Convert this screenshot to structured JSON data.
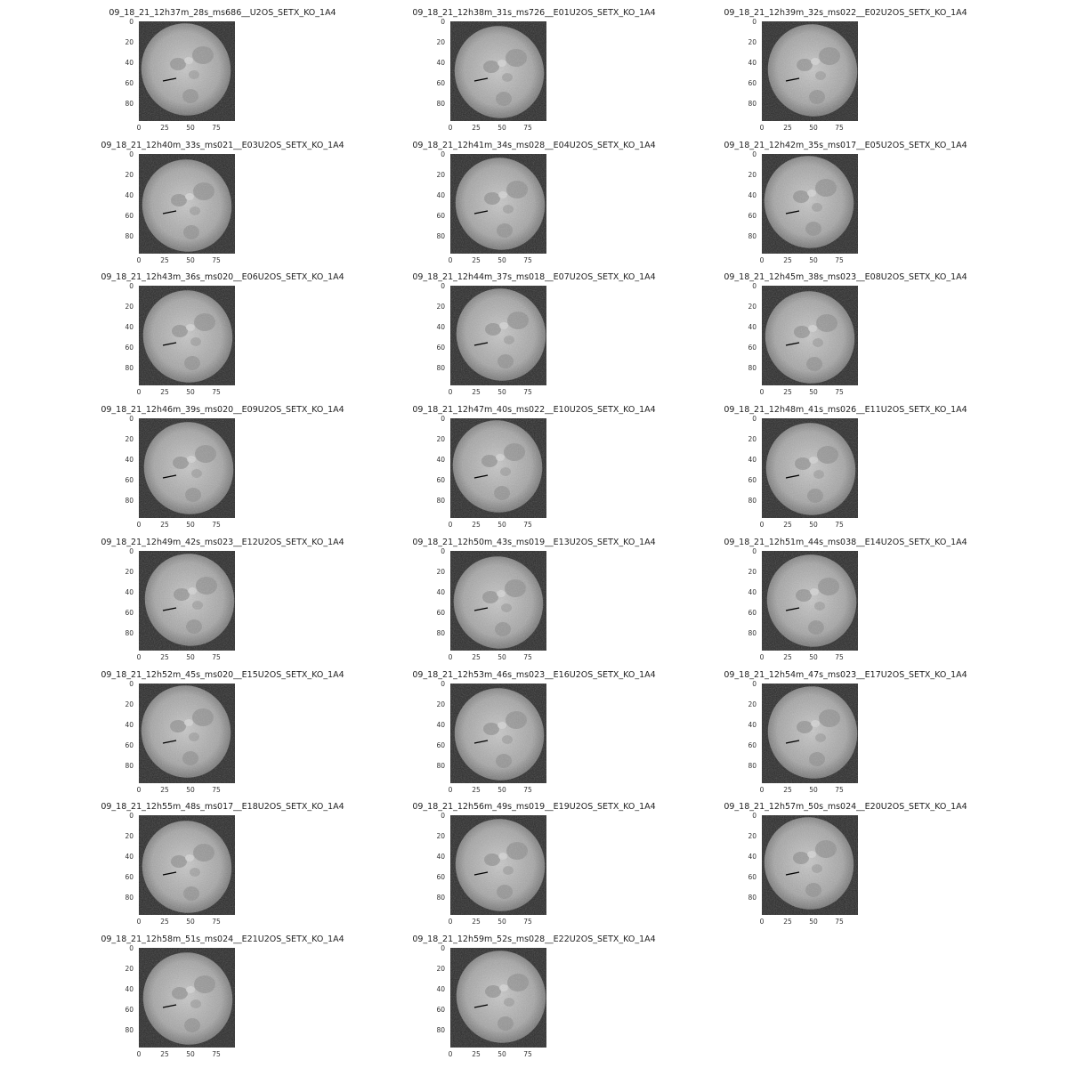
{
  "figure": {
    "panels": [
      {
        "title": "09_18_21_12h37m_28s_ms686__U2OS_SETX_KO_1A4"
      },
      {
        "title": "09_18_21_12h38m_31s_ms726__E01U2OS_SETX_KO_1A4"
      },
      {
        "title": "09_18_21_12h39m_32s_ms022__E02U2OS_SETX_KO_1A4"
      },
      {
        "title": "09_18_21_12h40m_33s_ms021__E03U2OS_SETX_KO_1A4"
      },
      {
        "title": "09_18_21_12h41m_34s_ms028__E04U2OS_SETX_KO_1A4"
      },
      {
        "title": "09_18_21_12h42m_35s_ms017__E05U2OS_SETX_KO_1A4"
      },
      {
        "title": "09_18_21_12h43m_36s_ms020__E06U2OS_SETX_KO_1A4"
      },
      {
        "title": "09_18_21_12h44m_37s_ms018__E07U2OS_SETX_KO_1A4"
      },
      {
        "title": "09_18_21_12h45m_38s_ms023__E08U2OS_SETX_KO_1A4"
      },
      {
        "title": "09_18_21_12h46m_39s_ms020__E09U2OS_SETX_KO_1A4"
      },
      {
        "title": "09_18_21_12h47m_40s_ms022__E10U2OS_SETX_KO_1A4"
      },
      {
        "title": "09_18_21_12h48m_41s_ms026__E11U2OS_SETX_KO_1A4"
      },
      {
        "title": "09_18_21_12h49m_42s_ms023__E12U2OS_SETX_KO_1A4"
      },
      {
        "title": "09_18_21_12h50m_43s_ms019__E13U2OS_SETX_KO_1A4"
      },
      {
        "title": "09_18_21_12h51m_44s_ms038__E14U2OS_SETX_KO_1A4"
      },
      {
        "title": "09_18_21_12h52m_45s_ms020__E15U2OS_SETX_KO_1A4"
      },
      {
        "title": "09_18_21_12h53m_46s_ms023__E16U2OS_SETX_KO_1A4"
      },
      {
        "title": "09_18_21_12h54m_47s_ms023__E17U2OS_SETX_KO_1A4"
      },
      {
        "title": "09_18_21_12h55m_48s_ms017__E18U2OS_SETX_KO_1A4"
      },
      {
        "title": "09_18_21_12h56m_49s_ms019__E19U2OS_SETX_KO_1A4"
      },
      {
        "title": "09_18_21_12h57m_50s_ms024__E20U2OS_SETX_KO_1A4"
      },
      {
        "title": "09_18_21_12h58m_51s_ms024__E21U2OS_SETX_KO_1A4"
      },
      {
        "title": "09_18_21_12h59m_52s_ms028__E22U2OS_SETX_KO_1A4"
      }
    ],
    "y_ticks": [
      "0",
      "20",
      "40",
      "60",
      "80"
    ],
    "x_ticks": [
      "0",
      "25",
      "50",
      "75"
    ],
    "image_colormap": "grayscale",
    "line_color": "#000000"
  }
}
